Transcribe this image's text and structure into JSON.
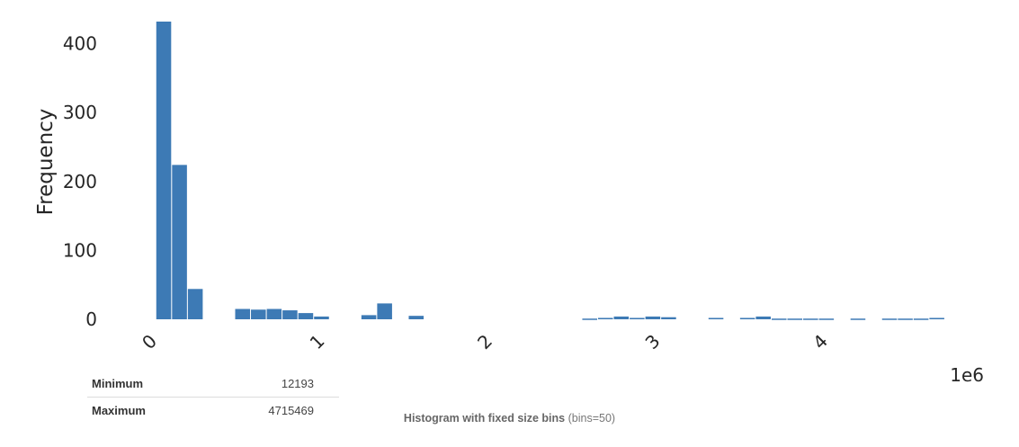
{
  "chart_data": {
    "type": "bar",
    "title": "",
    "xlabel": "",
    "ylabel": "Frequency",
    "x_scale_label": "1e6",
    "x_range": [
      0,
      4715469
    ],
    "y_range": [
      0,
      432
    ],
    "bins": 50,
    "bar_color": "#3d7ab5",
    "x_ticks": [
      {
        "value": 0,
        "label": "0"
      },
      {
        "value": 1000000,
        "label": "1"
      },
      {
        "value": 2000000,
        "label": "2"
      },
      {
        "value": 3000000,
        "label": "3"
      },
      {
        "value": 4000000,
        "label": "4"
      }
    ],
    "y_ticks": [
      0,
      100,
      200,
      300,
      400
    ],
    "bin_start": 12193,
    "bin_width": 94065.5,
    "values": [
      432,
      224,
      44,
      0,
      0,
      15,
      14,
      15,
      13,
      9,
      4,
      0,
      0,
      6,
      23,
      0,
      5,
      0,
      0,
      0,
      0,
      0,
      0,
      0,
      0,
      0,
      0,
      1,
      2,
      4,
      2,
      4,
      3,
      0,
      0,
      2,
      0,
      2,
      4,
      1,
      1,
      1,
      1,
      0,
      1,
      0,
      1,
      1,
      1,
      2
    ]
  },
  "stats": {
    "rows": [
      {
        "label": "Minimum",
        "value": "12193"
      },
      {
        "label": "Maximum",
        "value": "4715469"
      }
    ]
  },
  "caption": {
    "title": "Histogram with fixed size bins",
    "detail": "(bins=50)"
  }
}
